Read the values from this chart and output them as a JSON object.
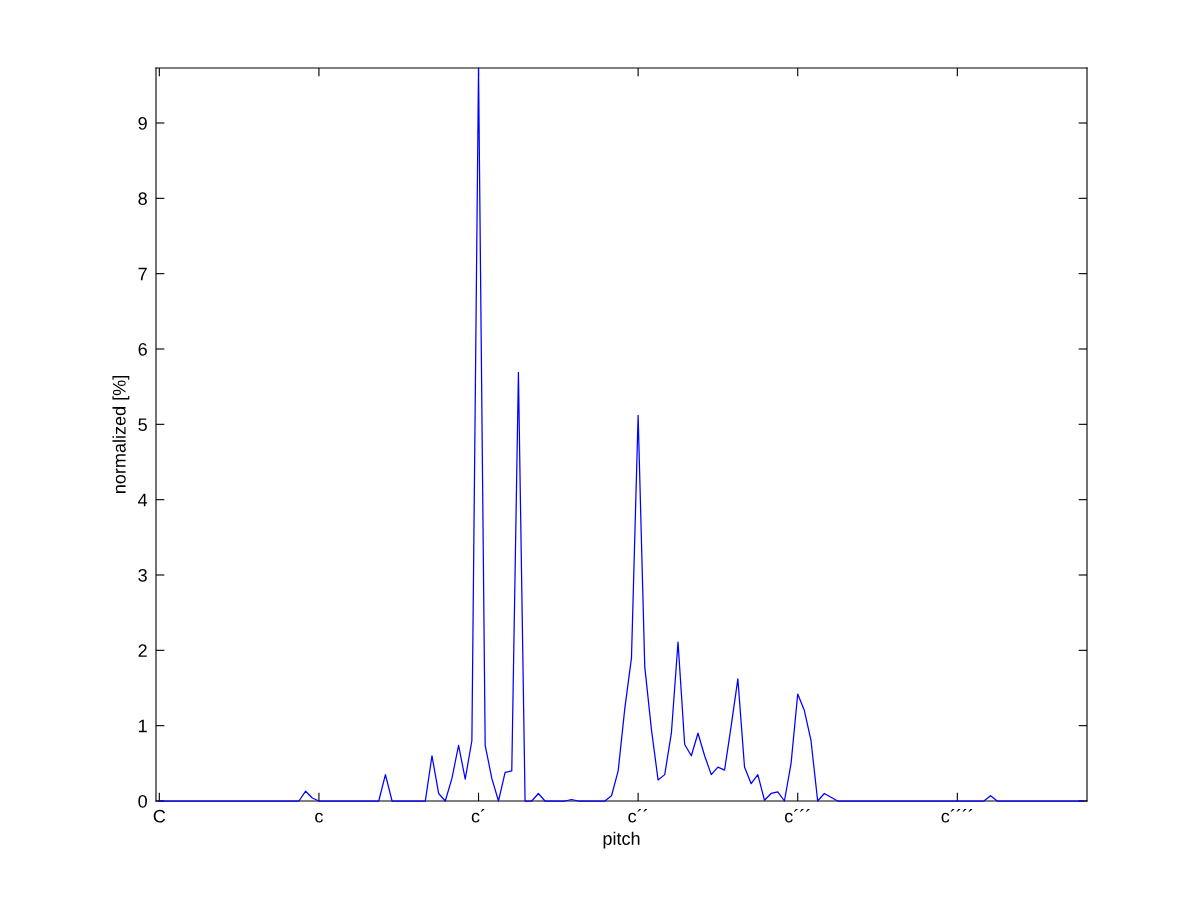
{
  "chart_data": {
    "type": "line",
    "xlabel": "pitch",
    "ylabel": "normalized [%]",
    "ylim": [
      0,
      9.73
    ],
    "categories": [
      "C",
      null,
      null,
      null,
      null,
      null,
      null,
      null,
      null,
      null,
      null,
      null,
      null,
      null,
      null,
      null,
      null,
      null,
      null,
      null,
      null,
      null,
      null,
      null,
      "c",
      null,
      null,
      null,
      null,
      null,
      null,
      null,
      null,
      null,
      null,
      null,
      null,
      null,
      null,
      null,
      null,
      null,
      null,
      null,
      null,
      null,
      null,
      null,
      "c´",
      null,
      null,
      null,
      null,
      null,
      null,
      null,
      null,
      null,
      null,
      null,
      null,
      null,
      null,
      null,
      null,
      null,
      null,
      null,
      null,
      null,
      null,
      null,
      "c´´",
      null,
      null,
      null,
      null,
      null,
      null,
      null,
      null,
      null,
      null,
      null,
      null,
      null,
      null,
      null,
      null,
      null,
      null,
      null,
      null,
      null,
      null,
      null,
      "c´´´",
      null,
      null,
      null,
      null,
      null,
      null,
      null,
      null,
      null,
      null,
      null,
      null,
      null,
      null,
      null,
      null,
      null,
      null,
      null,
      null,
      null,
      null,
      null,
      "c´´´´",
      null,
      null,
      null,
      null,
      null,
      null,
      null,
      null,
      null,
      null,
      null,
      null,
      null,
      null,
      null,
      null,
      null,
      null,
      null
    ],
    "yticks": [
      0,
      1,
      2,
      3,
      4,
      5,
      6,
      7,
      8,
      9
    ],
    "grid": false,
    "legend": false,
    "marker": "none",
    "line_style": "solid",
    "series": [
      {
        "color": "#0000ff",
        "values": [
          0,
          0,
          0,
          0,
          0,
          0,
          0,
          0,
          0,
          0,
          0,
          0,
          0,
          0,
          0,
          0,
          0,
          0,
          0,
          0,
          0,
          0,
          0.13,
          0.04,
          0,
          0,
          0,
          0,
          0,
          0,
          0,
          0,
          0,
          0,
          0.35,
          0,
          0,
          0,
          0,
          0,
          0,
          0.6,
          0.1,
          0,
          0.3,
          0.74,
          0.29,
          0.8,
          9.73,
          0.74,
          0.3,
          0,
          0.38,
          0.4,
          5.69,
          0,
          0,
          0.1,
          0,
          0,
          0,
          0,
          0.02,
          0,
          0,
          0,
          0,
          0,
          0.07,
          0.4,
          1.23,
          1.9,
          5.12,
          1.78,
          0.95,
          0.28,
          0.35,
          0.9,
          2.11,
          0.75,
          0.6,
          0.9,
          0.6,
          0.35,
          0.45,
          0.41,
          1.0,
          1.62,
          0.45,
          0.23,
          0.35,
          0.01,
          0.1,
          0.12,
          0,
          0.5,
          1.42,
          1.2,
          0.8,
          0,
          0.1,
          0.05,
          0,
          0,
          0,
          0,
          0,
          0,
          0,
          0,
          0,
          0,
          0,
          0,
          0,
          0,
          0,
          0,
          0,
          0,
          0,
          0,
          0,
          0,
          0,
          0.07,
          0,
          0,
          0,
          0,
          0,
          0,
          0,
          0,
          0,
          0,
          0,
          0,
          0,
          0
        ]
      }
    ]
  }
}
